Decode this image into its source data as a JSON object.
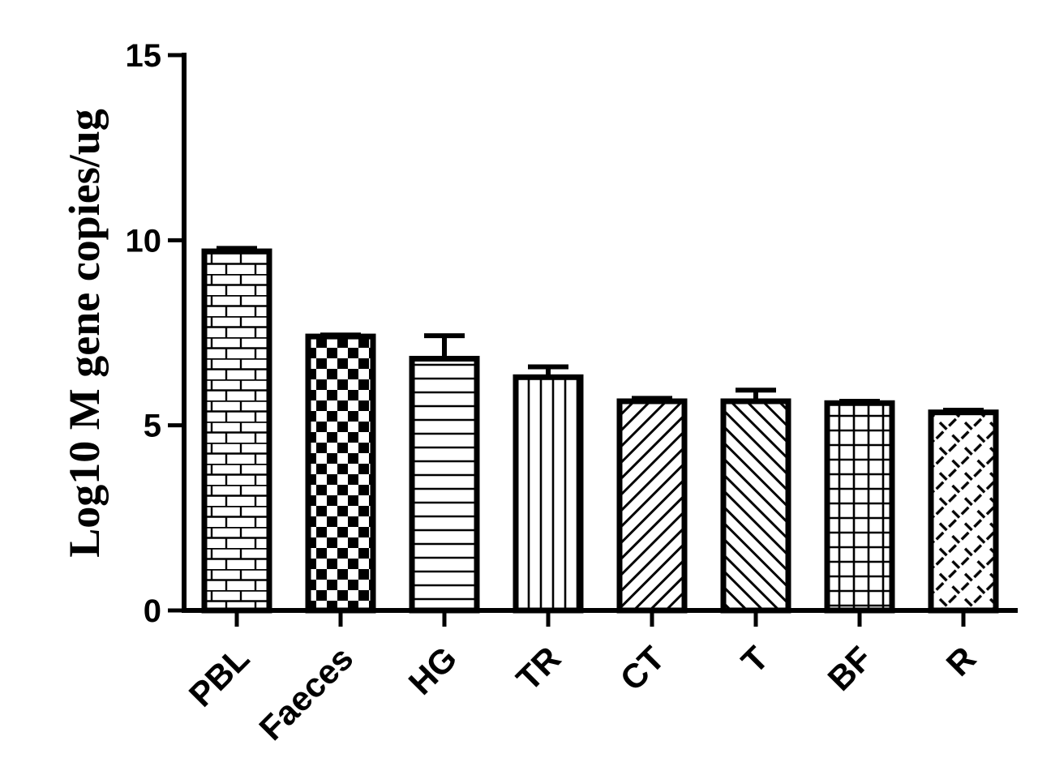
{
  "chart_data": {
    "type": "bar",
    "title": "",
    "xlabel": "",
    "ylabel": "Log10 M gene copies/ug",
    "ylim": [
      0,
      15
    ],
    "yticks": [
      0,
      5,
      10,
      15
    ],
    "grid": false,
    "legend": "none",
    "categories": [
      "PBL",
      "Faeces",
      "HG",
      "TR",
      "CT",
      "T",
      "BF",
      "R"
    ],
    "values": [
      9.7,
      7.4,
      6.8,
      6.3,
      5.65,
      5.65,
      5.6,
      5.35
    ],
    "errors": [
      0.08,
      0.04,
      0.62,
      0.28,
      0.08,
      0.3,
      0.05,
      0.06
    ],
    "patterns": [
      "brick",
      "checker",
      "horizontal-lines",
      "vertical-lines",
      "diagonal-forward",
      "diagonal-backward",
      "grid",
      "diagonal-cross"
    ],
    "colors": {
      "stroke": "#000000",
      "fill": "#ffffff"
    }
  }
}
